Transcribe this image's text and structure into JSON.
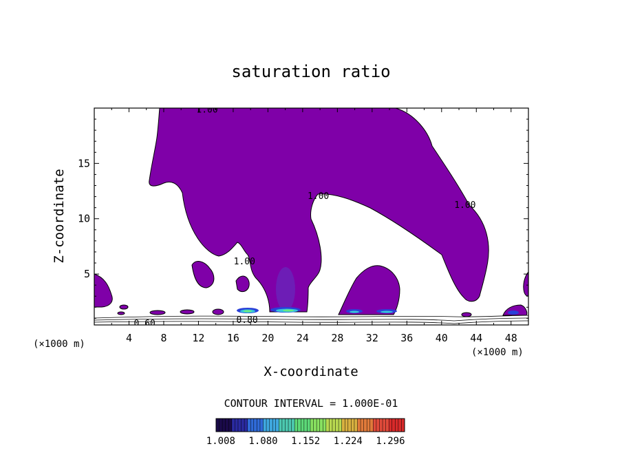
{
  "chart_data": {
    "type": "contour",
    "title": "saturation ratio",
    "xlabel": "X-coordinate",
    "ylabel": "Z-coordinate",
    "x_unit": "(×1000 m)",
    "x_unit_right": "(×1000 m)",
    "xlim": [
      0,
      50
    ],
    "ylim": [
      0.4,
      20
    ],
    "x_ticks": [
      "4",
      "8",
      "12",
      "16",
      "20",
      "24",
      "28",
      "32",
      "36",
      "40",
      "44",
      "48"
    ],
    "x_tick_values": [
      4,
      8,
      12,
      16,
      20,
      24,
      28,
      32,
      36,
      40,
      44,
      48
    ],
    "y_ticks": [
      "5",
      "10",
      "15"
    ],
    "y_tick_values": [
      5,
      10,
      15
    ],
    "contour_interval_text": "CONTOUR INTERVAL = 1.000E-01",
    "contour_labels": [
      {
        "text": "1.00",
        "x": 13.0,
        "z": 19.9
      },
      {
        "text": "1.00",
        "x": 25.8,
        "z": 12.1
      },
      {
        "text": "1.00",
        "x": 42.7,
        "z": 11.3
      },
      {
        "text": "1.00",
        "x": 17.3,
        "z": 6.2
      },
      {
        "text": "0.80",
        "x": 17.6,
        "z": 0.9
      },
      {
        "text": "0.60",
        "x": 5.8,
        "z": 0.6
      }
    ],
    "colorbar": {
      "labels": [
        "1.008",
        "1.080",
        "1.152",
        "1.224",
        "1.296"
      ],
      "values": [
        1.008,
        1.08,
        1.152,
        1.224,
        1.296
      ],
      "min": 1.0,
      "max": 1.32,
      "colors": [
        "#1a0a4a",
        "#2a2aa0",
        "#2f6ad8",
        "#3fa8e0",
        "#4cc8b0",
        "#5cd878",
        "#88e060",
        "#b8d850",
        "#d8b040",
        "#e07a3a",
        "#e04a3a",
        "#d82a2a"
      ]
    },
    "fill_color": "#7f00a8",
    "core_color": "#6a22b8",
    "hot_colors": [
      "#2a40d8",
      "#38c8d8",
      "#6ce880"
    ]
  }
}
